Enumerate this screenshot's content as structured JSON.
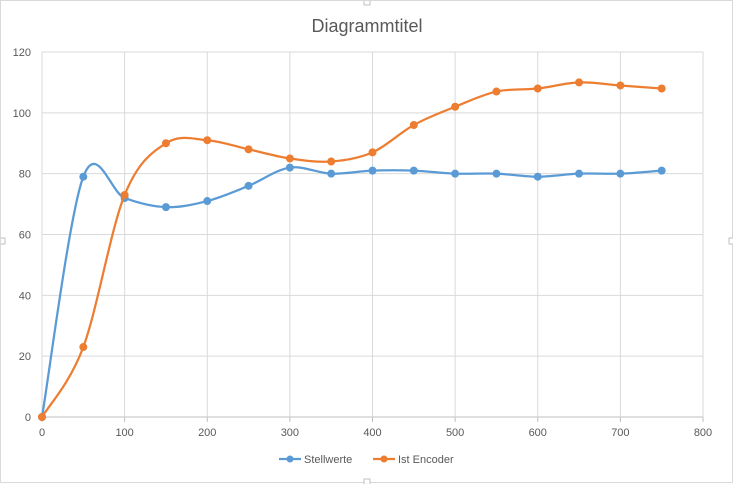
{
  "chart_data": {
    "type": "line",
    "title": "Diagrammtitel",
    "xlabel": "",
    "ylabel": "",
    "xlim": [
      0,
      800
    ],
    "ylim": [
      0,
      120
    ],
    "x_ticks": [
      0,
      100,
      200,
      300,
      400,
      500,
      600,
      700,
      800
    ],
    "y_ticks": [
      0,
      20,
      40,
      60,
      80,
      100,
      120
    ],
    "grid": true,
    "legend_position": "bottom",
    "smooth": true,
    "series": [
      {
        "name": "Stellwerte",
        "color": "#5b9bd5",
        "x": [
          0,
          50,
          100,
          150,
          200,
          250,
          300,
          350,
          400,
          450,
          500,
          550,
          600,
          650,
          700,
          750
        ],
        "y": [
          0,
          79,
          72,
          69,
          71,
          76,
          82,
          80,
          81,
          81,
          80,
          80,
          79,
          80,
          80,
          81
        ]
      },
      {
        "name": "Ist Encoder",
        "color": "#ed7d31",
        "x": [
          0,
          50,
          100,
          150,
          200,
          250,
          300,
          350,
          400,
          450,
          500,
          550,
          600,
          650,
          700,
          750
        ],
        "y": [
          0,
          23,
          73,
          90,
          91,
          88,
          85,
          84,
          87,
          96,
          102,
          107,
          108,
          110,
          109,
          108
        ]
      }
    ]
  }
}
